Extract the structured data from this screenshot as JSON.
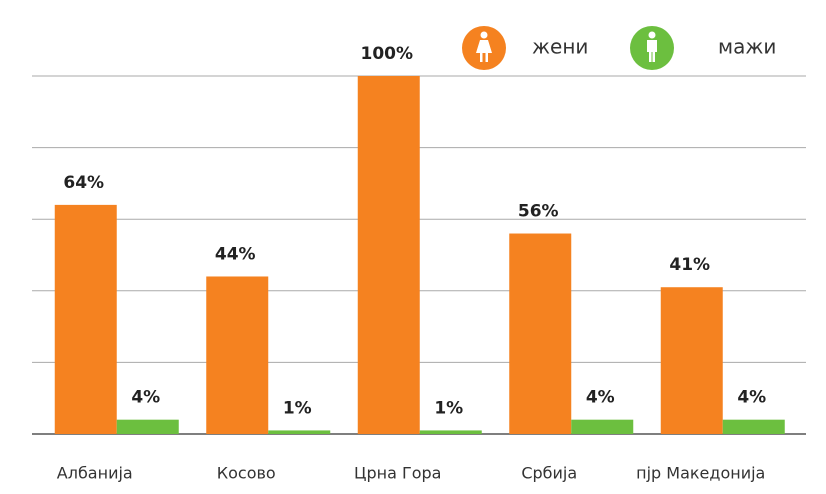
{
  "chart_data": {
    "type": "bar",
    "categories": [
      "Албанија",
      "Косово",
      "Црна Гора",
      "Србија",
      "пјр Македонија"
    ],
    "series": [
      {
        "name": "жени",
        "color": "#f58220",
        "values": [
          64,
          44,
          100,
          56,
          41
        ],
        "value_labels": [
          "64%",
          "44%",
          "100%",
          "56%",
          "41%"
        ]
      },
      {
        "name": "мажи",
        "color": "#6cbf3f",
        "values": [
          4,
          1,
          1,
          4,
          4
        ],
        "value_labels": [
          "4%",
          "1%",
          "1%",
          "4%",
          "4%"
        ]
      }
    ],
    "ylim": [
      0,
      100
    ],
    "yticks": [
      0,
      20,
      40,
      60,
      80,
      100
    ],
    "grid": true
  }
}
